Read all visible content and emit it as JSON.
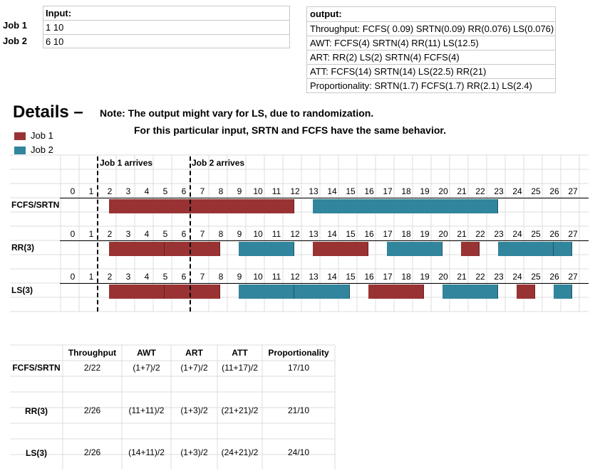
{
  "input": {
    "header": "Input:",
    "rows": [
      {
        "label": "Job 1",
        "value": "1 10"
      },
      {
        "label": "Job 2",
        "value": "6 10"
      }
    ]
  },
  "output": {
    "header": "output:",
    "lines": [
      "Throughput: FCFS( 0.09) SRTN(0.09) RR(0.076) LS(0.076)",
      "AWT: FCFS(4) SRTN(4) RR(11) LS(12.5)",
      "ART: RR(2) LS(2) SRTN(4) FCFS(4)",
      "ATT: FCFS(14)  SRTN(14)  LS(22.5) RR(21)",
      "Proportionality: SRTN(1.7) FCFS(1.7) RR(2.1) LS(2.4)"
    ]
  },
  "details": {
    "title": "Details –",
    "note1": "Note: The output might vary for LS, due to randomization.",
    "note2": "For this particular input, SRTN and FCFS have the same behavior."
  },
  "legend": [
    {
      "label": "Job 1",
      "color": "#993333"
    },
    {
      "label": "Job 2",
      "color": "#31859c"
    }
  ],
  "arrivals": {
    "job1": {
      "label": "Job 1 arrives",
      "time": 1
    },
    "job2": {
      "label": "Job 2 arrives",
      "time": 6
    }
  },
  "time_labels": [
    "0",
    "1",
    "2",
    "3",
    "4",
    "5",
    "6",
    "7",
    "8",
    "9",
    "10",
    "11",
    "12",
    "13",
    "14",
    "15",
    "16",
    "17",
    "18",
    "19",
    "20",
    "21",
    "22",
    "23",
    "24",
    "25",
    "26",
    "27"
  ],
  "schedules": [
    {
      "name": "FCFS/SRTN",
      "segments": [
        {
          "job": 1,
          "start": 2,
          "end": 12
        },
        {
          "job": 2,
          "start": 13,
          "end": 23
        }
      ]
    },
    {
      "name": "RR(3)",
      "segments": [
        {
          "job": 1,
          "start": 2,
          "end": 5
        },
        {
          "job": 1,
          "start": 5,
          "end": 8
        },
        {
          "job": 2,
          "start": 9,
          "end": 12
        },
        {
          "job": 1,
          "start": 13,
          "end": 16
        },
        {
          "job": 2,
          "start": 17,
          "end": 20
        },
        {
          "job": 1,
          "start": 21,
          "end": 22
        },
        {
          "job": 2,
          "start": 23,
          "end": 26
        },
        {
          "job": 2,
          "start": 26,
          "end": 27
        }
      ]
    },
    {
      "name": "LS(3)",
      "segments": [
        {
          "job": 1,
          "start": 2,
          "end": 5
        },
        {
          "job": 1,
          "start": 5,
          "end": 8
        },
        {
          "job": 2,
          "start": 9,
          "end": 12
        },
        {
          "job": 2,
          "start": 12,
          "end": 15
        },
        {
          "job": 1,
          "start": 16,
          "end": 19
        },
        {
          "job": 2,
          "start": 20,
          "end": 23
        },
        {
          "job": 1,
          "start": 24,
          "end": 25
        },
        {
          "job": 2,
          "start": 26,
          "end": 27
        }
      ]
    }
  ],
  "metrics": {
    "headers": [
      "Throughput",
      "AWT",
      "ART",
      "ATT",
      "Proportionality"
    ],
    "rows": [
      {
        "name": "FCFS/SRTN",
        "values": [
          "2/22",
          "(1+7)/2",
          "(1+7)/2",
          "(11+17)/2",
          "17/10"
        ]
      },
      {
        "name": "RR(3)",
        "values": [
          "2/26",
          "(11+11)/2",
          "(1+3)/2",
          "(21+21)/2",
          "21/10"
        ]
      },
      {
        "name": "LS(3)",
        "values": [
          "2/26",
          "(14+11)/2",
          "(1+3)/2",
          "(24+21)/2",
          "24/10"
        ]
      }
    ]
  }
}
